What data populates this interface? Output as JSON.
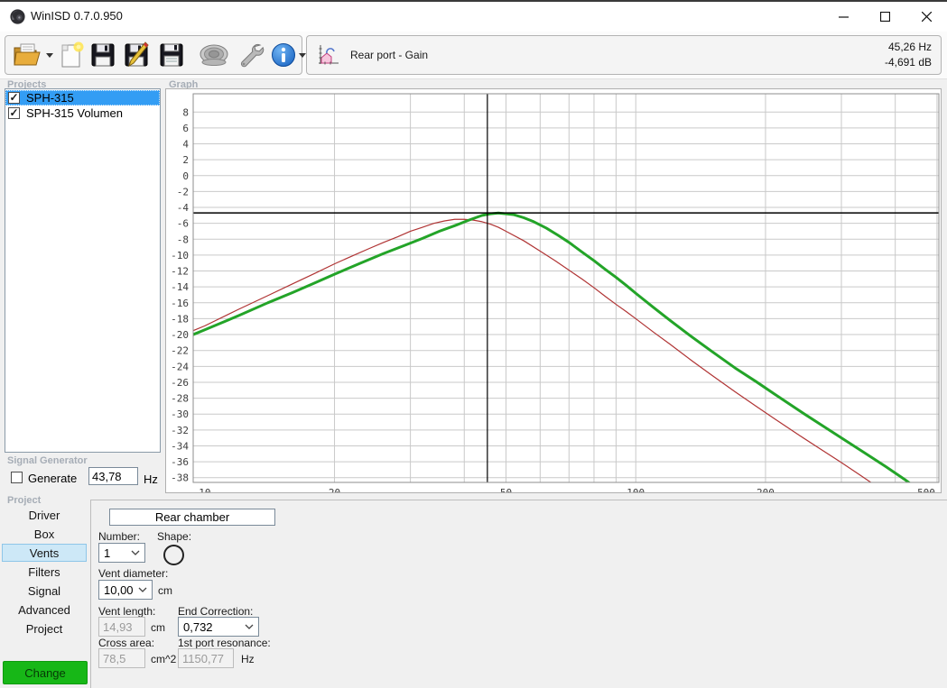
{
  "window": {
    "title": "WinISD 0.7.0.950",
    "controls": {
      "minimize": "minimize",
      "maximize": "maximize",
      "close": "close"
    }
  },
  "toolbar": {
    "icons": [
      "open-folder-icon",
      "open-dropdown-arrow",
      "new-project-icon",
      "save-icon",
      "save-edit-icon",
      "save-as-icon",
      "driver-icon",
      "wrench-icon",
      "info-icon",
      "info-dropdown-arrow",
      "graph-type-icon"
    ],
    "graph_selector_label": "Rear port - Gain",
    "readout": {
      "frequency": "45,26 Hz",
      "level": "-4,691 dB"
    }
  },
  "projects": {
    "label": "Projects",
    "items": [
      {
        "name": "SPH-315",
        "checked": true,
        "selected": true
      },
      {
        "name": "SPH-315 Volumen",
        "checked": true,
        "selected": false
      }
    ]
  },
  "graph": {
    "label": "Graph"
  },
  "chart_data": {
    "type": "line",
    "title": "Rear port - Gain",
    "x_scale": "log",
    "xlim": [
      9.4,
      505
    ],
    "ylim": [
      -38.6,
      10.3
    ],
    "x_ticks": [
      10,
      20,
      50,
      100,
      200,
      500
    ],
    "x_gridlines": [
      20,
      30,
      40,
      50,
      60,
      70,
      80,
      90,
      100,
      200,
      300,
      400,
      500
    ],
    "y_ticks": [
      8,
      6,
      4,
      2,
      0,
      -2,
      -4,
      -6,
      -8,
      -10,
      -12,
      -14,
      -16,
      -18,
      -20,
      -22,
      -24,
      -26,
      -28,
      -30,
      -32,
      -34,
      -36,
      -38
    ],
    "grid": true,
    "cursor": {
      "frequency_hz": 45.26,
      "level_db": -4.691
    },
    "series": [
      {
        "name": "red-curve",
        "color": "#b03434",
        "width": 1.2,
        "points": [
          [
            9.4,
            -19.5
          ],
          [
            10,
            -18.9
          ],
          [
            12,
            -16.8
          ],
          [
            14,
            -15.1
          ],
          [
            16,
            -13.6
          ],
          [
            18,
            -12.3
          ],
          [
            20,
            -11.1
          ],
          [
            22,
            -10.1
          ],
          [
            24,
            -9.2
          ],
          [
            26,
            -8.4
          ],
          [
            28,
            -7.7
          ],
          [
            30,
            -7.0
          ],
          [
            32,
            -6.5
          ],
          [
            34,
            -6.0
          ],
          [
            36,
            -5.7
          ],
          [
            38,
            -5.5
          ],
          [
            40,
            -5.5
          ],
          [
            42,
            -5.6
          ],
          [
            44,
            -5.8
          ],
          [
            46,
            -6.1
          ],
          [
            48,
            -6.5
          ],
          [
            50,
            -7.0
          ],
          [
            55,
            -8.2
          ],
          [
            60,
            -9.5
          ],
          [
            65,
            -10.7
          ],
          [
            70,
            -11.9
          ],
          [
            75,
            -13.0
          ],
          [
            80,
            -14.1
          ],
          [
            85,
            -15.2
          ],
          [
            90,
            -16.2
          ],
          [
            95,
            -17.1
          ],
          [
            100,
            -18.0
          ],
          [
            110,
            -19.7
          ],
          [
            120,
            -21.2
          ],
          [
            135,
            -23.3
          ],
          [
            150,
            -25.1
          ],
          [
            170,
            -27.2
          ],
          [
            190,
            -29.0
          ],
          [
            210,
            -30.6
          ],
          [
            240,
            -32.7
          ],
          [
            270,
            -34.5
          ],
          [
            300,
            -36.1
          ],
          [
            330,
            -37.6
          ],
          [
            360,
            -39.0
          ],
          [
            372,
            -39.6
          ]
        ]
      },
      {
        "name": "green-curve",
        "color": "#23a428",
        "width": 3,
        "points": [
          [
            9.4,
            -20.0
          ],
          [
            10,
            -19.4
          ],
          [
            12,
            -17.6
          ],
          [
            14,
            -16.0
          ],
          [
            16,
            -14.7
          ],
          [
            18,
            -13.5
          ],
          [
            20,
            -12.4
          ],
          [
            23,
            -11.0
          ],
          [
            26,
            -9.8
          ],
          [
            29,
            -8.8
          ],
          [
            32,
            -7.9
          ],
          [
            35,
            -7.0
          ],
          [
            38,
            -6.3
          ],
          [
            41,
            -5.6
          ],
          [
            44,
            -5.0
          ],
          [
            46,
            -4.8
          ],
          [
            48,
            -4.7
          ],
          [
            50,
            -4.8
          ],
          [
            52,
            -4.9
          ],
          [
            55,
            -5.3
          ],
          [
            58,
            -5.8
          ],
          [
            62,
            -6.6
          ],
          [
            66,
            -7.5
          ],
          [
            70,
            -8.4
          ],
          [
            75,
            -9.6
          ],
          [
            80,
            -10.7
          ],
          [
            85,
            -11.8
          ],
          [
            90,
            -12.8
          ],
          [
            95,
            -13.8
          ],
          [
            100,
            -14.8
          ],
          [
            110,
            -16.6
          ],
          [
            120,
            -18.2
          ],
          [
            135,
            -20.3
          ],
          [
            150,
            -22.1
          ],
          [
            170,
            -24.2
          ],
          [
            190,
            -25.9
          ],
          [
            210,
            -27.5
          ],
          [
            240,
            -29.6
          ],
          [
            270,
            -31.4
          ],
          [
            300,
            -33.0
          ],
          [
            340,
            -34.9
          ],
          [
            380,
            -36.6
          ],
          [
            420,
            -38.2
          ],
          [
            450,
            -39.4
          ]
        ]
      }
    ]
  },
  "signal_generator": {
    "label": "Signal Generator",
    "generate_label": "Generate",
    "generate_checked": false,
    "frequency_value": "43,78",
    "frequency_unit": "Hz"
  },
  "project_nav": {
    "label": "Project",
    "items": [
      "Driver",
      "Box",
      "Vents",
      "Filters",
      "Signal",
      "Advanced",
      "Project"
    ],
    "active": "Vents",
    "change_button": "Change"
  },
  "vents_form": {
    "chamber_value": "Rear chamber",
    "number": {
      "label": "Number:",
      "value": "1"
    },
    "shape": {
      "label": "Shape:",
      "selected": "circle"
    },
    "vent_diameter": {
      "label": "Vent diameter:",
      "value": "10,00",
      "unit": "cm"
    },
    "vent_length": {
      "label": "Vent length:",
      "value": "14,93",
      "unit": "cm"
    },
    "end_correction": {
      "label": "End Correction:",
      "value": "0,732"
    },
    "cross_area": {
      "label": "Cross area:",
      "value": "78,5",
      "unit": "cm^2"
    },
    "port_resonance": {
      "label": "1st port resonance:",
      "value": "1150,77",
      "unit": "Hz"
    }
  }
}
